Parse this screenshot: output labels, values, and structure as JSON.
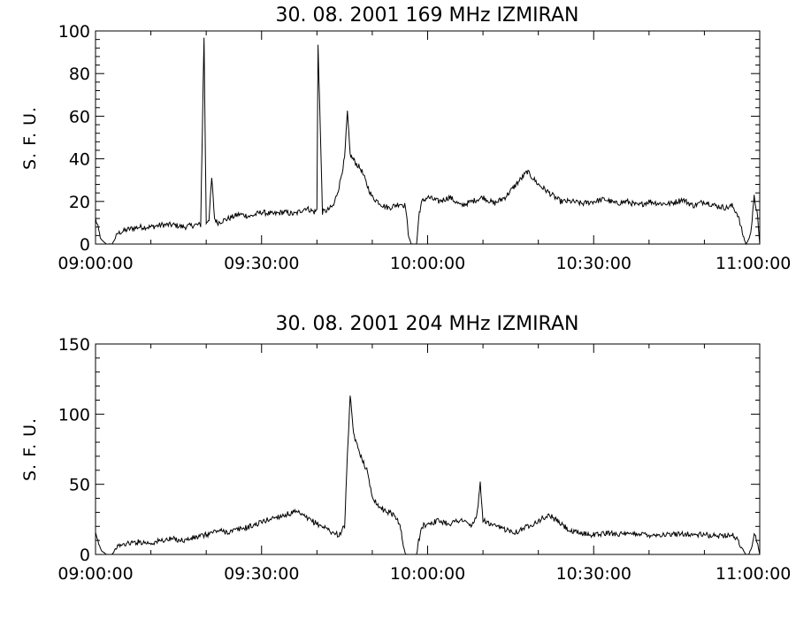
{
  "colors": {
    "background": "#ffffff",
    "ink": "#000000"
  },
  "chart_data": [
    {
      "type": "line",
      "title": "30.  08.  2001    169  MHz    IZMIRAN",
      "xlabel": "",
      "ylabel": "S. F. U.",
      "xlim": [
        "09:00:00",
        "11:00:00"
      ],
      "xticks": [
        "09:00:00",
        "09:30:00",
        "10:00:00",
        "10:30:00",
        "11:00:00"
      ],
      "ylim": [
        0,
        100
      ],
      "yticks": [
        "0",
        "20",
        "40",
        "60",
        "80",
        "100"
      ],
      "grid": false,
      "series": [
        {
          "x_minutes": [
            0,
            1,
            2,
            3,
            4,
            6,
            8,
            10,
            12,
            14,
            16,
            18,
            19,
            19.6,
            20,
            20.5,
            21,
            21.5,
            22,
            23,
            24,
            26,
            28,
            30,
            32,
            34,
            36,
            38,
            39.5,
            40,
            40.2,
            41,
            42,
            43,
            44,
            45,
            45.5,
            46,
            46.5,
            47,
            48,
            49,
            50,
            51,
            52,
            53,
            54,
            55,
            56,
            56.5,
            57,
            58,
            58.5,
            59,
            60,
            62,
            64,
            66,
            68,
            70,
            72,
            74,
            76,
            78,
            80,
            82,
            84,
            86,
            88,
            90,
            92,
            94,
            96,
            98,
            100,
            102,
            104,
            106,
            108,
            110,
            112,
            114,
            115,
            116,
            117,
            117.5,
            118,
            118.5,
            119,
            119.5,
            120
          ],
          "values": [
            12,
            2,
            0,
            0,
            5,
            7,
            8,
            8,
            9,
            9,
            8,
            9,
            9,
            97,
            10,
            12,
            31,
            12,
            10,
            11,
            12,
            14,
            13,
            15,
            14,
            15,
            14,
            17,
            15,
            16,
            94,
            15,
            16,
            18,
            27,
            40,
            62,
            42,
            40,
            38,
            35,
            28,
            22,
            20,
            18,
            17,
            18,
            19,
            18,
            5,
            0,
            0,
            15,
            20,
            22,
            20,
            22,
            18,
            20,
            22,
            19,
            22,
            28,
            34,
            28,
            24,
            20,
            20,
            19,
            20,
            21,
            19,
            20,
            18,
            20,
            19,
            19,
            21,
            18,
            20,
            18,
            17,
            18,
            14,
            4,
            0,
            2,
            8,
            22,
            15,
            0
          ]
        }
      ]
    },
    {
      "type": "line",
      "title": "30.  08.  2001    204  MHz    IZMIRAN",
      "xlabel": "",
      "ylabel": "S. F. U.",
      "xlim": [
        "09:00:00",
        "11:00:00"
      ],
      "xticks": [
        "09:00:00",
        "09:30:00",
        "10:00:00",
        "10:30:00",
        "11:00:00"
      ],
      "ylim": [
        0,
        150
      ],
      "yticks": [
        "0",
        "50",
        "100",
        "150"
      ],
      "grid": false,
      "series": [
        {
          "x_minutes": [
            0,
            1,
            2,
            3,
            4,
            6,
            8,
            10,
            12,
            14,
            16,
            18,
            20,
            22,
            24,
            26,
            28,
            30,
            32,
            34,
            36,
            37,
            38,
            40,
            42,
            43,
            44,
            45,
            45.5,
            46,
            46.5,
            47,
            48,
            49,
            50,
            51,
            52,
            53,
            54,
            55,
            55.5,
            56,
            57,
            58,
            58.5,
            59,
            60,
            62,
            64,
            66,
            68,
            69,
            69.5,
            70,
            71,
            72,
            74,
            76,
            78,
            80,
            82,
            84,
            86,
            88,
            90,
            92,
            94,
            96,
            98,
            100,
            102,
            104,
            106,
            108,
            110,
            112,
            114,
            115,
            116,
            117,
            117.5,
            118,
            118.5,
            119,
            119.5,
            120
          ],
          "values": [
            14,
            3,
            0,
            0,
            6,
            8,
            9,
            8,
            10,
            11,
            10,
            12,
            14,
            17,
            16,
            18,
            20,
            23,
            26,
            28,
            30,
            29,
            26,
            22,
            18,
            15,
            14,
            20,
            70,
            113,
            90,
            80,
            70,
            60,
            42,
            35,
            32,
            30,
            28,
            22,
            8,
            0,
            0,
            0,
            12,
            20,
            22,
            24,
            22,
            25,
            20,
            30,
            50,
            25,
            22,
            20,
            18,
            16,
            20,
            24,
            28,
            22,
            16,
            15,
            14,
            15,
            15,
            14,
            15,
            14,
            14,
            14,
            15,
            14,
            14,
            13,
            14,
            14,
            10,
            3,
            0,
            0,
            5,
            14,
            10,
            0
          ]
        }
      ]
    }
  ]
}
